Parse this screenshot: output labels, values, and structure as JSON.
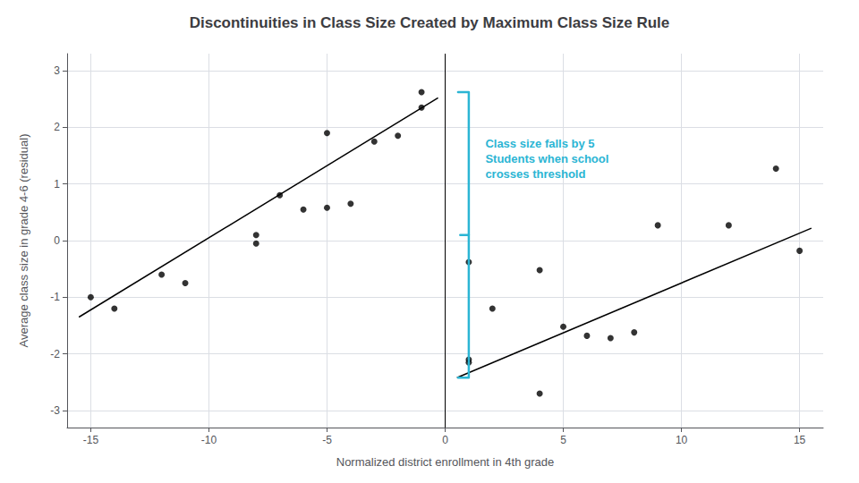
{
  "chart_data": {
    "type": "scatter",
    "title": "Discontinuities in Class Size Created by Maximum Class Size Rule",
    "xlabel": "Normalized district enrollment in 4th grade",
    "ylabel": "Average class size in grade 4-6 (residual)",
    "xlim": [
      -16,
      16
    ],
    "ylim": [
      -3.3,
      3.3
    ],
    "xticks": [
      -15,
      -10,
      -5,
      0,
      5,
      10,
      15
    ],
    "yticks": [
      -3,
      -2,
      -1,
      0,
      1,
      2,
      3
    ],
    "grid": true,
    "series": [
      {
        "type": "scatter",
        "color": "#000000",
        "marker": "circle",
        "x": [
          -15,
          -14,
          -12,
          -11,
          -8,
          -8,
          -7,
          -6,
          -5,
          -5,
          -4,
          -3,
          -2,
          -1,
          -1
        ],
        "values": [
          -1.0,
          -1.2,
          -0.6,
          -0.75,
          0.1,
          -0.05,
          0.8,
          0.55,
          0.58,
          1.9,
          0.65,
          1.75,
          1.85,
          2.35,
          2.62
        ]
      },
      {
        "type": "scatter",
        "color": "#000000",
        "marker": "circle",
        "x": [
          1,
          1,
          1,
          2,
          4,
          4,
          5,
          6,
          7,
          8,
          9,
          12,
          14,
          15
        ],
        "values": [
          -0.38,
          -2.1,
          -2.15,
          -1.2,
          -2.7,
          -0.52,
          -1.52,
          -1.68,
          -1.72,
          -1.62,
          0.27,
          0.27,
          1.27,
          -0.18
        ]
      },
      {
        "type": "line",
        "color": "#000000",
        "line_style": "solid",
        "x": [
          -15.5,
          -0.3
        ],
        "values": [
          -1.35,
          2.52
        ]
      },
      {
        "type": "line",
        "color": "#000000",
        "line_style": "solid",
        "x": [
          0.5,
          15.5
        ],
        "values": [
          -2.42,
          0.22
        ]
      },
      {
        "type": "vline",
        "color": "#000000",
        "line_style": "solid",
        "x": [
          0
        ]
      }
    ],
    "bracket": {
      "x": 1.0,
      "top": 2.62,
      "mid": 0.1,
      "bottom": -2.42,
      "color": "#2bb5d4"
    },
    "annotations": [
      {
        "text": "Class size falls by 5\nStudents when school\ncrosses threshold",
        "x": 1.7,
        "y": 1.85,
        "color": "#2bb5d4"
      }
    ]
  }
}
